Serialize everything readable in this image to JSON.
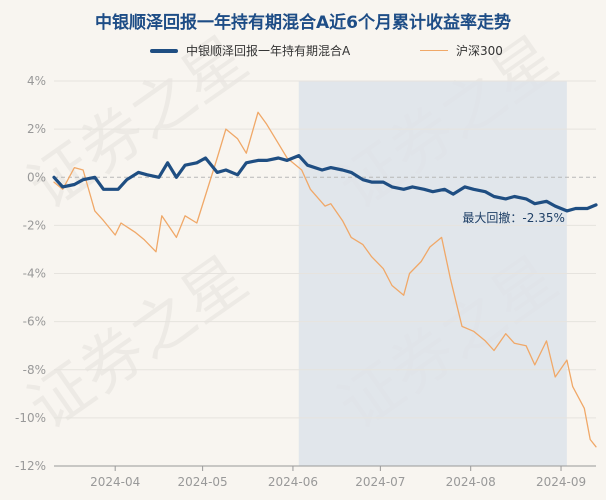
{
  "chart_data": {
    "type": "line",
    "title": "中银顺泽回报一年持有期混合A近6个月累计收益率走势",
    "ylim": [
      -12,
      4
    ],
    "y_ticks": [
      "4%",
      "2%",
      "0%",
      "-2%",
      "-4%",
      "-6%",
      "-8%",
      "-10%",
      "-12%"
    ],
    "x_range": [
      "2024-03-11",
      "2024-09-13"
    ],
    "x_ticks": [
      "2024-04",
      "2024-05",
      "2024-06",
      "2024-07",
      "2024-08",
      "2024-09"
    ],
    "grid": "horizontal",
    "legend_position": "top",
    "watermark": "证券之星",
    "series": [
      {
        "name": "中银顺泽回报一年持有期混合A",
        "color": "#1f4e82",
        "points": [
          [
            "2024-03-11",
            0.0
          ],
          [
            "2024-03-14",
            -0.4
          ],
          [
            "2024-03-18",
            -0.3
          ],
          [
            "2024-03-21",
            -0.1
          ],
          [
            "2024-03-25",
            0.0
          ],
          [
            "2024-03-28",
            -0.5
          ],
          [
            "2024-04-02",
            -0.5
          ],
          [
            "2024-04-05",
            -0.1
          ],
          [
            "2024-04-09",
            0.2
          ],
          [
            "2024-04-12",
            0.1
          ],
          [
            "2024-04-16",
            0.0
          ],
          [
            "2024-04-19",
            0.6
          ],
          [
            "2024-04-22",
            0.0
          ],
          [
            "2024-04-25",
            0.5
          ],
          [
            "2024-04-29",
            0.6
          ],
          [
            "2024-05-02",
            0.8
          ],
          [
            "2024-05-06",
            0.2
          ],
          [
            "2024-05-09",
            0.3
          ],
          [
            "2024-05-13",
            0.1
          ],
          [
            "2024-05-16",
            0.6
          ],
          [
            "2024-05-20",
            0.7
          ],
          [
            "2024-05-23",
            0.7
          ],
          [
            "2024-05-27",
            0.8
          ],
          [
            "2024-05-30",
            0.7
          ],
          [
            "2024-06-03",
            0.9
          ],
          [
            "2024-06-06",
            0.5
          ],
          [
            "2024-06-11",
            0.3
          ],
          [
            "2024-06-14",
            0.4
          ],
          [
            "2024-06-18",
            0.3
          ],
          [
            "2024-06-21",
            0.2
          ],
          [
            "2024-06-25",
            -0.1
          ],
          [
            "2024-06-28",
            -0.2
          ],
          [
            "2024-07-02",
            -0.2
          ],
          [
            "2024-07-05",
            -0.4
          ],
          [
            "2024-07-09",
            -0.5
          ],
          [
            "2024-07-12",
            -0.4
          ],
          [
            "2024-07-16",
            -0.5
          ],
          [
            "2024-07-19",
            -0.6
          ],
          [
            "2024-07-23",
            -0.5
          ],
          [
            "2024-07-26",
            -0.7
          ],
          [
            "2024-07-30",
            -0.4
          ],
          [
            "2024-08-02",
            -0.5
          ],
          [
            "2024-08-06",
            -0.6
          ],
          [
            "2024-08-09",
            -0.8
          ],
          [
            "2024-08-13",
            -0.9
          ],
          [
            "2024-08-16",
            -0.8
          ],
          [
            "2024-08-20",
            -0.9
          ],
          [
            "2024-08-23",
            -1.1
          ],
          [
            "2024-08-27",
            -1.0
          ],
          [
            "2024-08-30",
            -1.2
          ],
          [
            "2024-09-03",
            -1.4
          ],
          [
            "2024-09-06",
            -1.3
          ],
          [
            "2024-09-10",
            -1.3
          ],
          [
            "2024-09-13",
            -1.15
          ]
        ]
      },
      {
        "name": "沪深300",
        "color": "#f0a868",
        "points": [
          [
            "2024-03-11",
            -0.2
          ],
          [
            "2024-03-14",
            -0.5
          ],
          [
            "2024-03-18",
            0.4
          ],
          [
            "2024-03-21",
            0.3
          ],
          [
            "2024-03-25",
            -1.4
          ],
          [
            "2024-03-28",
            -1.8
          ],
          [
            "2024-04-01",
            -2.4
          ],
          [
            "2024-04-03",
            -1.9
          ],
          [
            "2024-04-08",
            -2.3
          ],
          [
            "2024-04-11",
            -2.6
          ],
          [
            "2024-04-15",
            -3.1
          ],
          [
            "2024-04-17",
            -1.6
          ],
          [
            "2024-04-22",
            -2.5
          ],
          [
            "2024-04-25",
            -1.6
          ],
          [
            "2024-04-29",
            -1.9
          ],
          [
            "2024-05-06",
            0.8
          ],
          [
            "2024-05-09",
            2.0
          ],
          [
            "2024-05-13",
            1.6
          ],
          [
            "2024-05-16",
            1.0
          ],
          [
            "2024-05-20",
            2.7
          ],
          [
            "2024-05-23",
            2.2
          ],
          [
            "2024-05-27",
            1.4
          ],
          [
            "2024-05-30",
            0.8
          ],
          [
            "2024-06-04",
            0.3
          ],
          [
            "2024-06-07",
            -0.5
          ],
          [
            "2024-06-12",
            -1.2
          ],
          [
            "2024-06-14",
            -1.1
          ],
          [
            "2024-06-18",
            -1.8
          ],
          [
            "2024-06-21",
            -2.5
          ],
          [
            "2024-06-25",
            -2.8
          ],
          [
            "2024-06-28",
            -3.3
          ],
          [
            "2024-07-02",
            -3.8
          ],
          [
            "2024-07-05",
            -4.5
          ],
          [
            "2024-07-09",
            -4.9
          ],
          [
            "2024-07-11",
            -4.0
          ],
          [
            "2024-07-15",
            -3.5
          ],
          [
            "2024-07-18",
            -2.9
          ],
          [
            "2024-07-22",
            -2.5
          ],
          [
            "2024-07-25",
            -4.2
          ],
          [
            "2024-07-29",
            -6.2
          ],
          [
            "2024-08-02",
            -6.4
          ],
          [
            "2024-08-06",
            -6.8
          ],
          [
            "2024-08-09",
            -7.2
          ],
          [
            "2024-08-13",
            -6.5
          ],
          [
            "2024-08-16",
            -6.9
          ],
          [
            "2024-08-20",
            -7.0
          ],
          [
            "2024-08-23",
            -7.8
          ],
          [
            "2024-08-27",
            -6.8
          ],
          [
            "2024-08-30",
            -8.3
          ],
          [
            "2024-09-03",
            -7.6
          ],
          [
            "2024-09-05",
            -8.7
          ],
          [
            "2024-09-09",
            -9.6
          ],
          [
            "2024-09-11",
            -10.9
          ],
          [
            "2024-09-13",
            -11.2
          ]
        ]
      }
    ],
    "drawdown": {
      "label": "最大回撤：-2.35%",
      "start": "2024-06-03",
      "end": "2024-09-03"
    }
  }
}
